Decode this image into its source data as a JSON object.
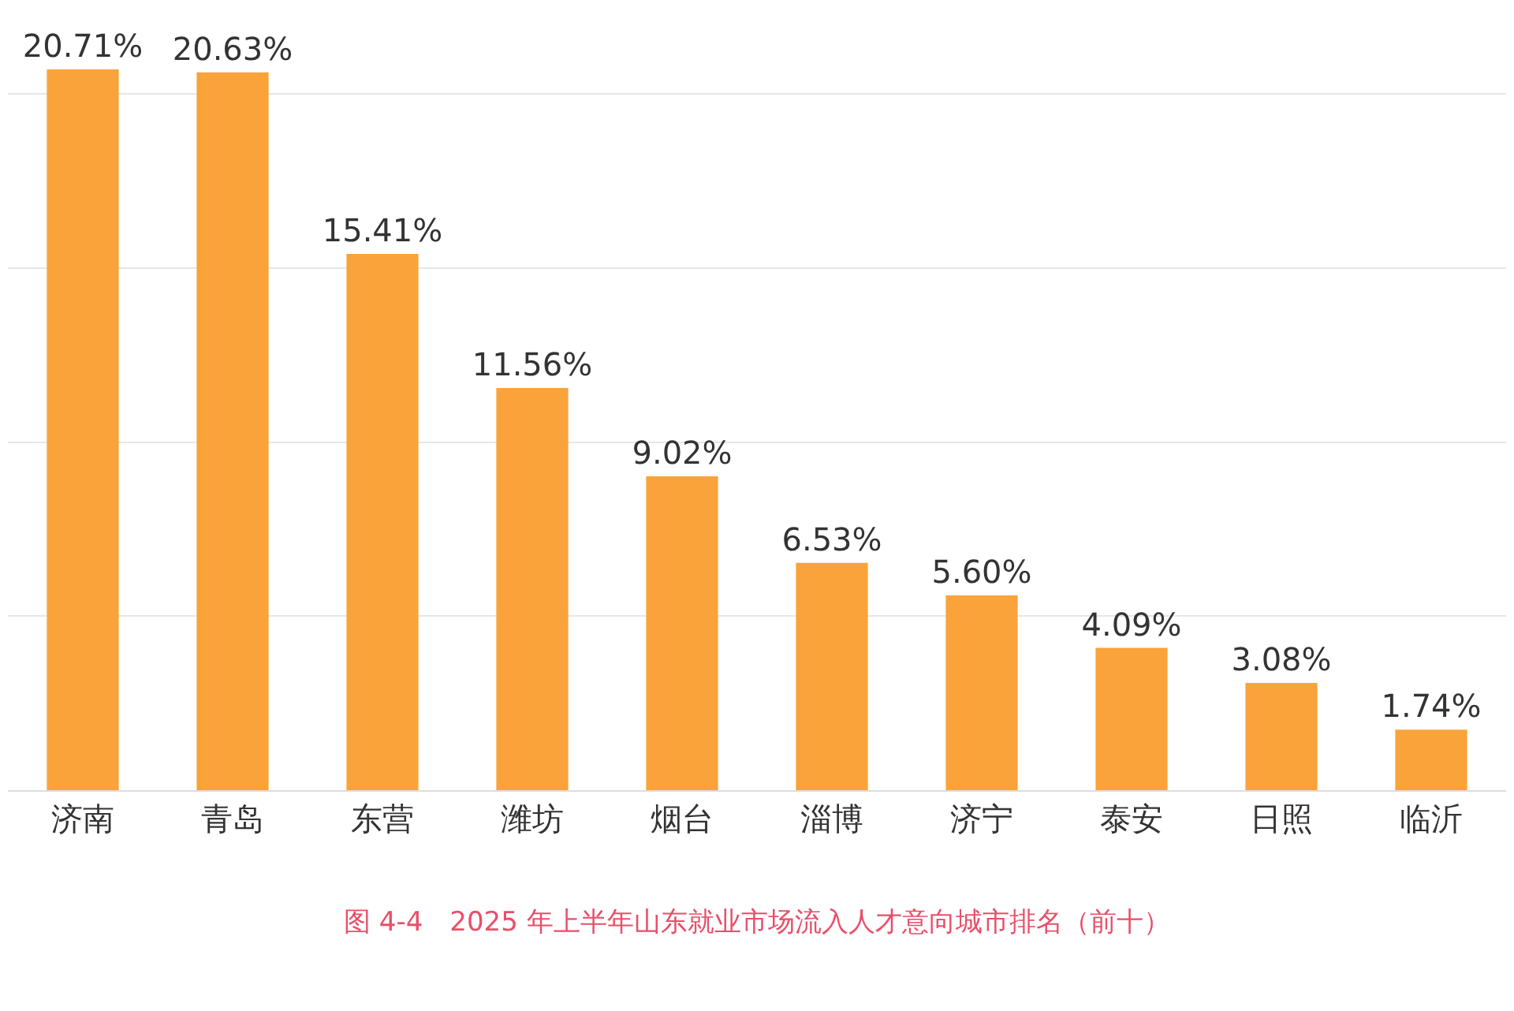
{
  "chart_data": {
    "type": "bar",
    "categories": [
      "济南",
      "青岛",
      "东营",
      "潍坊",
      "烟台",
      "淄博",
      "济宁",
      "泰安",
      "日照",
      "临沂"
    ],
    "values": [
      20.71,
      20.63,
      15.41,
      11.56,
      9.02,
      6.53,
      5.6,
      4.09,
      3.08,
      1.74
    ],
    "value_labels": [
      "20.71%",
      "20.63%",
      "15.41%",
      "11.56%",
      "9.02%",
      "6.53%",
      "5.60%",
      "4.09%",
      "3.08%",
      "1.74%"
    ],
    "color": "#f9a33a",
    "yticks": [
      {
        "value": 0,
        "label": null
      },
      {
        "value": 5,
        "label": null
      },
      {
        "value": 10,
        "label": null
      },
      {
        "value": 15,
        "label": null
      },
      {
        "value": 20,
        "label": null
      }
    ],
    "grid": "y",
    "tick_labels": "x",
    "legend": false,
    "annotations": [
      "图 4-4　2025 年上半年山东就业市场流入人才意向城市排名（前十）"
    ]
  }
}
